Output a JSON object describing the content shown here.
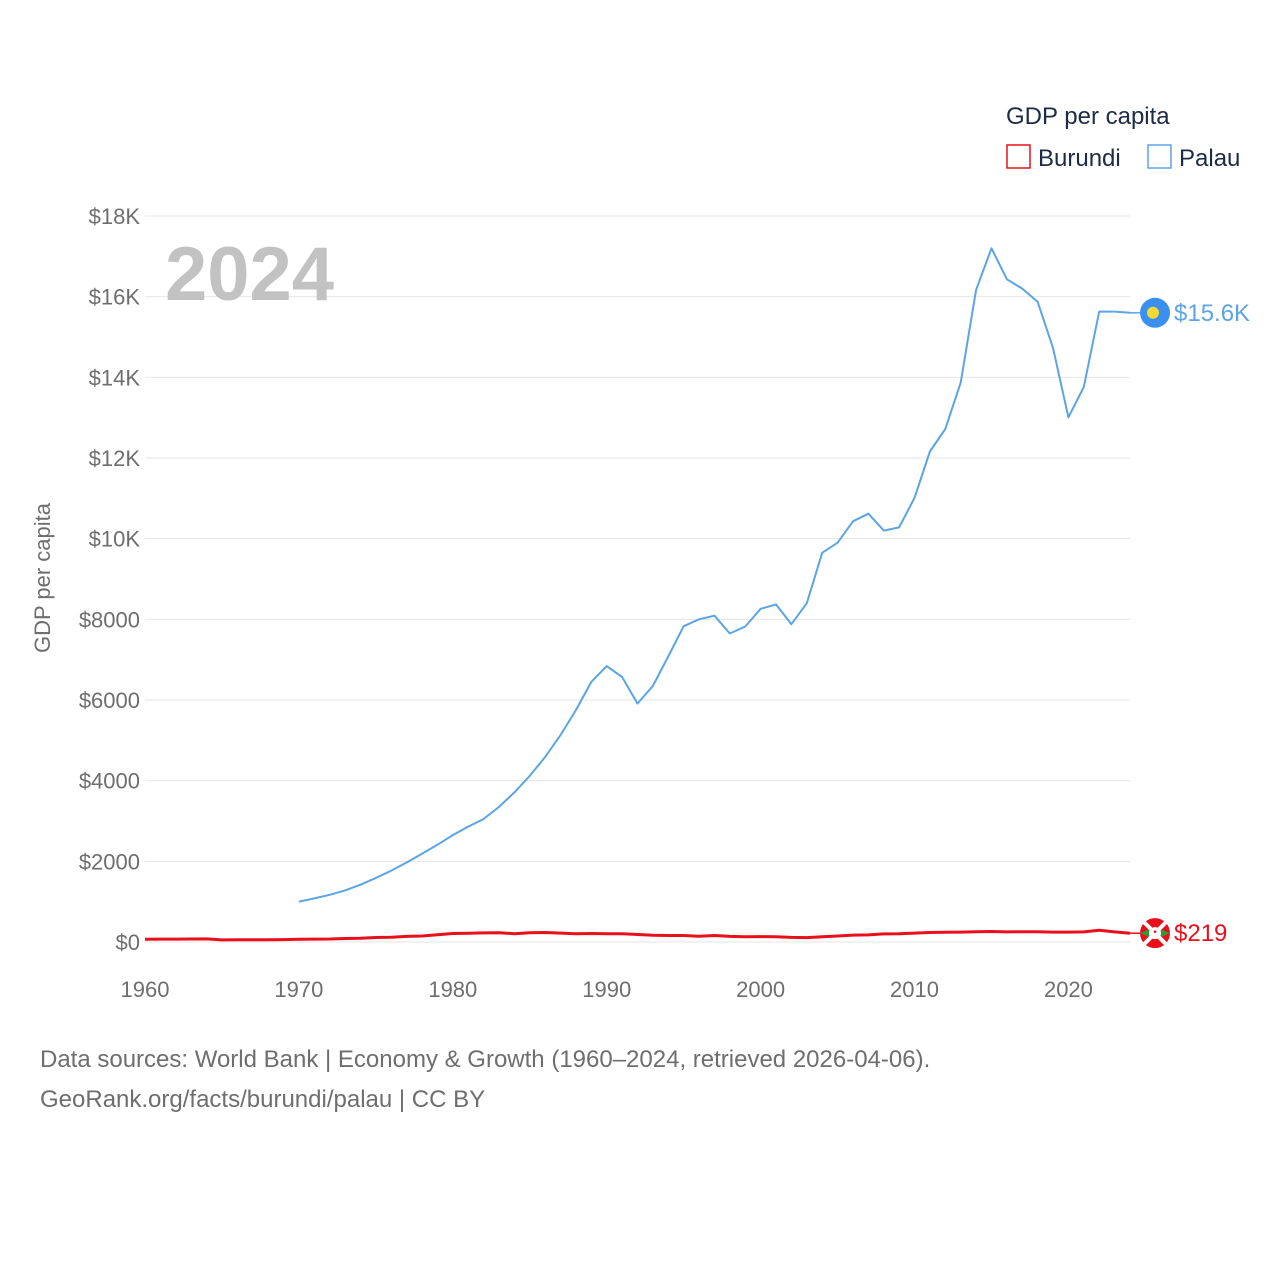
{
  "chart_data": {
    "type": "line",
    "year_label": "2024",
    "legend_title": "GDP per capita",
    "ylabel": "GDP per capita",
    "ylim": [
      0,
      18000
    ],
    "xlim": [
      1960,
      2024
    ],
    "x_ticks": [
      1960,
      1970,
      1980,
      1990,
      2000,
      2010,
      2020
    ],
    "x_tick_labels": [
      "1960",
      "1970",
      "1980",
      "1990",
      "2000",
      "2010",
      "2020"
    ],
    "y_ticks": [
      0,
      2000,
      4000,
      6000,
      8000,
      10000,
      12000,
      14000,
      16000,
      18000
    ],
    "y_tick_labels": [
      "$0",
      "$2000",
      "$4000",
      "$6000",
      "$8000",
      "$10K",
      "$12K",
      "$14K",
      "$16K",
      "$18K"
    ],
    "grid": true,
    "legend_position": "top-right",
    "series": [
      {
        "name": "Burundi",
        "color": "#e8101a",
        "end_label": "$219",
        "flag": "burundi-flag",
        "x": [
          1960,
          1961,
          1962,
          1963,
          1964,
          1965,
          1966,
          1967,
          1968,
          1969,
          1970,
          1971,
          1972,
          1973,
          1974,
          1975,
          1976,
          1977,
          1978,
          1979,
          1980,
          1981,
          1982,
          1983,
          1984,
          1985,
          1986,
          1987,
          1988,
          1989,
          1990,
          1991,
          1992,
          1993,
          1994,
          1995,
          1996,
          1997,
          1998,
          1999,
          2000,
          2001,
          2002,
          2003,
          2004,
          2005,
          2006,
          2007,
          2008,
          2009,
          2010,
          2011,
          2012,
          2013,
          2014,
          2015,
          2016,
          2017,
          2018,
          2019,
          2020,
          2021,
          2022,
          2023,
          2024
        ],
        "values": [
          70,
          71,
          72,
          75,
          78,
          52,
          55,
          57,
          58,
          60,
          70,
          72,
          74,
          88,
          92,
          112,
          118,
          140,
          150,
          180,
          210,
          215,
          225,
          230,
          205,
          230,
          235,
          220,
          205,
          210,
          205,
          205,
          185,
          165,
          160,
          160,
          145,
          160,
          140,
          130,
          135,
          130,
          115,
          110,
          130,
          150,
          170,
          175,
          200,
          205,
          220,
          235,
          240,
          245,
          255,
          260,
          250,
          255,
          255,
          245,
          245,
          250,
          290,
          250,
          219
        ]
      },
      {
        "name": "Palau",
        "color": "#5ba4e6",
        "end_label": "$15.6K",
        "flag": "palau-flag",
        "x": [
          1970,
          1971,
          1972,
          1973,
          1974,
          1975,
          1976,
          1977,
          1978,
          1979,
          1980,
          1981,
          1982,
          1983,
          1984,
          1985,
          1986,
          1987,
          1988,
          1989,
          1990,
          1991,
          1992,
          1993,
          1994,
          1995,
          1996,
          1997,
          1998,
          1999,
          2000,
          2001,
          2002,
          2003,
          2004,
          2005,
          2006,
          2007,
          2008,
          2009,
          2010,
          2011,
          2012,
          2013,
          2014,
          2015,
          2016,
          2017,
          2018,
          2019,
          2020,
          2021,
          2022,
          2023,
          2024
        ],
        "values": [
          1000,
          1080,
          1170,
          1280,
          1420,
          1590,
          1770,
          1970,
          2190,
          2410,
          2650,
          2860,
          3050,
          3350,
          3710,
          4120,
          4590,
          5130,
          5750,
          6450,
          6840,
          6570,
          5910,
          6350,
          7080,
          7830,
          8000,
          8090,
          7650,
          7820,
          8260,
          8370,
          7880,
          8400,
          9650,
          9900,
          10430,
          10620,
          10200,
          10280,
          11010,
          12160,
          12720,
          13870,
          16170,
          17200,
          16430,
          16200,
          15870,
          14730,
          13010,
          13760,
          15630,
          15630,
          15600
        ]
      }
    ]
  },
  "footer": {
    "line1": "Data sources: World Bank | Economy & Growth (1960–2024, retrieved 2026-04-06).",
    "line2": "GeoRank.org/facts/burundi/palau | CC BY"
  }
}
